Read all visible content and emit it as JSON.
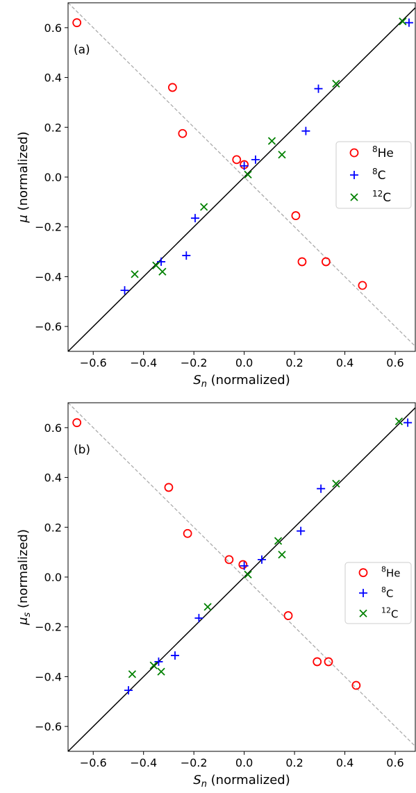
{
  "chart_data": [
    {
      "type": "scatter",
      "panel_label": "(a)",
      "xlabel_main": "S",
      "xlabel_sub": "n",
      "xlabel_rest": " (normalized)",
      "ylabel_main": "μ",
      "ylabel_sub": "",
      "ylabel_rest": " (normalized)",
      "xlim": [
        -0.7,
        0.68
      ],
      "ylim": [
        -0.7,
        0.7
      ],
      "xticks": [
        -0.6,
        -0.4,
        -0.2,
        0.0,
        0.2,
        0.4,
        0.6
      ],
      "xtick_labels": [
        "−0.6",
        "−0.4",
        "−0.2",
        "0.0",
        "0.2",
        "0.4",
        "0.6"
      ],
      "yticks": [
        -0.6,
        -0.4,
        -0.2,
        0.0,
        0.2,
        0.4,
        0.6
      ],
      "ytick_labels": [
        "−0.6",
        "−0.4",
        "−0.2",
        "0.0",
        "0.2",
        "0.4",
        "0.6"
      ],
      "grid": false,
      "legend_position": "right",
      "reference_lines": [
        {
          "name": "y = x",
          "slope": 1,
          "style": "solid",
          "color": "#000000"
        },
        {
          "name": "y = -x",
          "slope": -1,
          "style": "dashed",
          "color": "#aaaaaa"
        }
      ],
      "series": [
        {
          "name_sup": "8",
          "name_base": "He",
          "marker": "circle",
          "color": "#ff0000",
          "points": [
            [
              -0.665,
              0.62
            ],
            [
              -0.285,
              0.36
            ],
            [
              -0.245,
              0.175
            ],
            [
              -0.03,
              0.07
            ],
            [
              0.0,
              0.05
            ],
            [
              0.205,
              -0.155
            ],
            [
              0.23,
              -0.34
            ],
            [
              0.325,
              -0.34
            ],
            [
              0.47,
              -0.435
            ]
          ]
        },
        {
          "name_sup": "8",
          "name_base": "C",
          "marker": "plus",
          "color": "#0000ff",
          "points": [
            [
              -0.475,
              -0.455
            ],
            [
              -0.33,
              -0.34
            ],
            [
              -0.23,
              -0.315
            ],
            [
              -0.195,
              -0.165
            ],
            [
              0.0,
              0.045
            ],
            [
              0.045,
              0.07
            ],
            [
              0.245,
              0.185
            ],
            [
              0.295,
              0.355
            ],
            [
              0.655,
              0.62
            ]
          ]
        },
        {
          "name_sup": "12",
          "name_base": "C",
          "marker": "cross",
          "color": "#008000",
          "points": [
            [
              -0.435,
              -0.39
            ],
            [
              -0.35,
              -0.355
            ],
            [
              -0.325,
              -0.38
            ],
            [
              -0.16,
              -0.12
            ],
            [
              0.015,
              0.01
            ],
            [
              0.11,
              0.145
            ],
            [
              0.15,
              0.09
            ],
            [
              0.365,
              0.375
            ],
            [
              0.63,
              0.625
            ]
          ]
        }
      ]
    },
    {
      "type": "scatter",
      "panel_label": "(b)",
      "xlabel_main": "S",
      "xlabel_sub": "n",
      "xlabel_rest": " (normalized)",
      "ylabel_main": "μ",
      "ylabel_sub": "s",
      "ylabel_rest": " (normalized)",
      "xlim": [
        -0.7,
        0.68
      ],
      "ylim": [
        -0.7,
        0.7
      ],
      "xticks": [
        -0.6,
        -0.4,
        -0.2,
        0.0,
        0.2,
        0.4,
        0.6
      ],
      "xtick_labels": [
        "−0.6",
        "−0.4",
        "−0.2",
        "0.0",
        "0.2",
        "0.4",
        "0.6"
      ],
      "yticks": [
        -0.6,
        -0.4,
        -0.2,
        0.0,
        0.2,
        0.4,
        0.6
      ],
      "ytick_labels": [
        "−0.6",
        "−0.4",
        "−0.2",
        "0.0",
        "0.2",
        "0.4",
        "0.6"
      ],
      "grid": false,
      "legend_position": "right",
      "reference_lines": [
        {
          "name": "y = x",
          "slope": 1,
          "style": "solid",
          "color": "#000000"
        },
        {
          "name": "y = -x",
          "slope": -1,
          "style": "dashed",
          "color": "#aaaaaa"
        }
      ],
      "series": [
        {
          "name_sup": "8",
          "name_base": "He",
          "marker": "circle",
          "color": "#ff0000",
          "points": [
            [
              -0.665,
              0.62
            ],
            [
              -0.3,
              0.36
            ],
            [
              -0.225,
              0.175
            ],
            [
              -0.06,
              0.07
            ],
            [
              -0.005,
              0.05
            ],
            [
              0.175,
              -0.155
            ],
            [
              0.29,
              -0.34
            ],
            [
              0.335,
              -0.34
            ],
            [
              0.445,
              -0.435
            ]
          ]
        },
        {
          "name_sup": "8",
          "name_base": "C",
          "marker": "plus",
          "color": "#0000ff",
          "points": [
            [
              -0.46,
              -0.455
            ],
            [
              -0.34,
              -0.34
            ],
            [
              -0.275,
              -0.315
            ],
            [
              -0.18,
              -0.165
            ],
            [
              0.0,
              0.045
            ],
            [
              0.07,
              0.07
            ],
            [
              0.225,
              0.185
            ],
            [
              0.305,
              0.355
            ],
            [
              0.65,
              0.62
            ]
          ]
        },
        {
          "name_sup": "12",
          "name_base": "C",
          "marker": "cross",
          "color": "#008000",
          "points": [
            [
              -0.445,
              -0.39
            ],
            [
              -0.36,
              -0.355
            ],
            [
              -0.33,
              -0.38
            ],
            [
              -0.145,
              -0.12
            ],
            [
              0.015,
              0.01
            ],
            [
              0.135,
              0.145
            ],
            [
              0.15,
              0.09
            ],
            [
              0.365,
              0.375
            ],
            [
              0.615,
              0.625
            ]
          ]
        }
      ]
    }
  ]
}
